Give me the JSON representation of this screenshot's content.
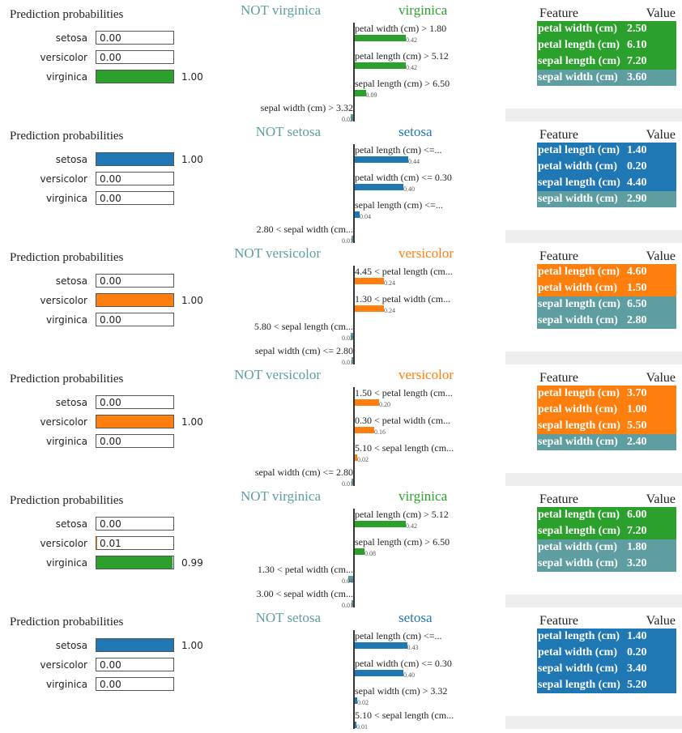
{
  "colors": {
    "setosa": "#1f77b4",
    "versicolor": "#ff7f0e",
    "virginica": "#2ca02c",
    "not": "#5f9ea0",
    "axis": "#333333",
    "gray": "#eeeeee"
  },
  "chart_data": [
    {
      "type": "bar",
      "probabilities_title": "Prediction probabilities",
      "probabilities": [
        {
          "label": "setosa",
          "value": 0.0,
          "text": "0.00"
        },
        {
          "label": "versicolor",
          "value": 0.0,
          "text": "0.00"
        },
        {
          "label": "virginica",
          "value": 1.0,
          "text": "1.00"
        }
      ],
      "predicted_class": "virginica",
      "not_label": "NOT virginica",
      "class_label": "virginica",
      "features": [
        {
          "label": "petal width (cm) > 1.80",
          "value": 0.42,
          "text": "0.42",
          "side": "pos"
        },
        {
          "label": "petal length (cm) > 5.12",
          "value": 0.42,
          "text": "0.42",
          "side": "pos"
        },
        {
          "label": "sepal length (cm) > 6.50",
          "value": 0.09,
          "text": "0.09",
          "side": "pos"
        },
        {
          "label": "sepal width (cm) > 3.32",
          "value": 0.02,
          "text": "0.02",
          "side": "neg"
        }
      ],
      "table_header": {
        "feature": "Feature",
        "value": "Value"
      },
      "table": [
        {
          "feature": "petal width (cm)",
          "value": "2.50",
          "side": "pos"
        },
        {
          "feature": "petal length (cm)",
          "value": "6.10",
          "side": "pos"
        },
        {
          "feature": "sepal length (cm)",
          "value": "7.20",
          "side": "pos"
        },
        {
          "feature": "sepal width (cm)",
          "value": "3.60",
          "side": "neg"
        }
      ]
    },
    {
      "type": "bar",
      "probabilities_title": "Prediction probabilities",
      "probabilities": [
        {
          "label": "setosa",
          "value": 1.0,
          "text": "1.00"
        },
        {
          "label": "versicolor",
          "value": 0.0,
          "text": "0.00"
        },
        {
          "label": "virginica",
          "value": 0.0,
          "text": "0.00"
        }
      ],
      "predicted_class": "setosa",
      "not_label": "NOT setosa",
      "class_label": "setosa",
      "features": [
        {
          "label": "petal length (cm) <=...",
          "value": 0.44,
          "text": "0.44",
          "side": "pos"
        },
        {
          "label": "petal width (cm) <= 0.30",
          "value": 0.4,
          "text": "0.40",
          "side": "pos"
        },
        {
          "label": "sepal length (cm) <=...",
          "value": 0.04,
          "text": "0.04",
          "side": "pos"
        },
        {
          "label": "2.80 < sepal width (cm...",
          "value": 0.01,
          "text": "0.01",
          "side": "neg"
        }
      ],
      "table_header": {
        "feature": "Feature",
        "value": "Value"
      },
      "table": [
        {
          "feature": "petal length (cm)",
          "value": "1.40",
          "side": "pos"
        },
        {
          "feature": "petal width (cm)",
          "value": "0.20",
          "side": "pos"
        },
        {
          "feature": "sepal length (cm)",
          "value": "4.40",
          "side": "pos"
        },
        {
          "feature": "sepal width (cm)",
          "value": "2.90",
          "side": "neg"
        }
      ]
    },
    {
      "type": "bar",
      "probabilities_title": "Prediction probabilities",
      "probabilities": [
        {
          "label": "setosa",
          "value": 0.0,
          "text": "0.00"
        },
        {
          "label": "versicolor",
          "value": 1.0,
          "text": "1.00"
        },
        {
          "label": "virginica",
          "value": 0.0,
          "text": "0.00"
        }
      ],
      "predicted_class": "versicolor",
      "not_label": "NOT versicolor",
      "class_label": "versicolor",
      "features": [
        {
          "label": "4.45 < petal length (cm...",
          "value": 0.24,
          "text": "0.24",
          "side": "pos"
        },
        {
          "label": "1.30 < petal width (cm...",
          "value": 0.24,
          "text": "0.24",
          "side": "pos"
        },
        {
          "label": "5.80 < sepal length (cm...",
          "value": 0.02,
          "text": "0.02",
          "side": "neg"
        },
        {
          "label": "sepal width (cm) <= 2.80",
          "value": 0.01,
          "text": "0.01",
          "side": "neg"
        }
      ],
      "table_header": {
        "feature": "Feature",
        "value": "Value"
      },
      "table": [
        {
          "feature": "petal length (cm)",
          "value": "4.60",
          "side": "pos"
        },
        {
          "feature": "petal width (cm)",
          "value": "1.50",
          "side": "pos"
        },
        {
          "feature": "sepal length (cm)",
          "value": "6.50",
          "side": "neg"
        },
        {
          "feature": "sepal width (cm)",
          "value": "2.80",
          "side": "neg"
        }
      ]
    },
    {
      "type": "bar",
      "probabilities_title": "Prediction probabilities",
      "probabilities": [
        {
          "label": "setosa",
          "value": 0.0,
          "text": "0.00"
        },
        {
          "label": "versicolor",
          "value": 1.0,
          "text": "1.00"
        },
        {
          "label": "virginica",
          "value": 0.0,
          "text": "0.00"
        }
      ],
      "predicted_class": "versicolor",
      "not_label": "NOT versicolor",
      "class_label": "versicolor",
      "features": [
        {
          "label": "1.50 < petal length (cm...",
          "value": 0.2,
          "text": "0.20",
          "side": "pos"
        },
        {
          "label": "0.30 < petal width (cm...",
          "value": 0.16,
          "text": "0.16",
          "side": "pos"
        },
        {
          "label": "5.10 < sepal length (cm...",
          "value": 0.02,
          "text": "0.02",
          "side": "pos"
        },
        {
          "label": "sepal width (cm) <= 2.80",
          "value": 0.01,
          "text": "0.01",
          "side": "neg"
        }
      ],
      "table_header": {
        "feature": "Feature",
        "value": "Value"
      },
      "table": [
        {
          "feature": "petal length (cm)",
          "value": "3.70",
          "side": "pos"
        },
        {
          "feature": "petal width (cm)",
          "value": "1.00",
          "side": "pos"
        },
        {
          "feature": "sepal length (cm)",
          "value": "5.50",
          "side": "pos"
        },
        {
          "feature": "sepal width (cm)",
          "value": "2.40",
          "side": "neg"
        }
      ]
    },
    {
      "type": "bar",
      "probabilities_title": "Prediction probabilities",
      "probabilities": [
        {
          "label": "setosa",
          "value": 0.0,
          "text": "0.00"
        },
        {
          "label": "versicolor",
          "value": 0.01,
          "text": "0.01"
        },
        {
          "label": "virginica",
          "value": 0.99,
          "text": "0.99"
        }
      ],
      "predicted_class": "virginica",
      "not_label": "NOT virginica",
      "class_label": "virginica",
      "features": [
        {
          "label": "petal length (cm) > 5.12",
          "value": 0.42,
          "text": "0.42",
          "side": "pos"
        },
        {
          "label": "sepal length (cm) > 6.50",
          "value": 0.08,
          "text": "0.08",
          "side": "pos"
        },
        {
          "label": "1.30 < petal width (cm...",
          "value": 0.04,
          "text": "0.04",
          "side": "neg"
        },
        {
          "label": "3.00 < sepal width (cm...",
          "value": 0.01,
          "text": "0.01",
          "side": "neg"
        }
      ],
      "table_header": {
        "feature": "Feature",
        "value": "Value"
      },
      "table": [
        {
          "feature": "petal length (cm)",
          "value": "6.00",
          "side": "pos"
        },
        {
          "feature": "sepal length (cm)",
          "value": "7.20",
          "side": "pos"
        },
        {
          "feature": "petal width (cm)",
          "value": "1.80",
          "side": "neg"
        },
        {
          "feature": "sepal width (cm)",
          "value": "3.20",
          "side": "neg"
        }
      ]
    },
    {
      "type": "bar",
      "probabilities_title": "Prediction probabilities",
      "probabilities": [
        {
          "label": "setosa",
          "value": 1.0,
          "text": "1.00"
        },
        {
          "label": "versicolor",
          "value": 0.0,
          "text": "0.00"
        },
        {
          "label": "virginica",
          "value": 0.0,
          "text": "0.00"
        }
      ],
      "predicted_class": "setosa",
      "not_label": "NOT setosa",
      "class_label": "setosa",
      "features": [
        {
          "label": "petal length (cm) <=...",
          "value": 0.43,
          "text": "0.43",
          "side": "pos"
        },
        {
          "label": "petal width (cm) <= 0.30",
          "value": 0.4,
          "text": "0.40",
          "side": "pos"
        },
        {
          "label": "sepal width (cm) > 3.32",
          "value": 0.02,
          "text": "0.02",
          "side": "pos"
        },
        {
          "label": "5.10 < sepal length (cm...",
          "value": 0.01,
          "text": "0.01",
          "side": "pos"
        }
      ],
      "table_header": {
        "feature": "Feature",
        "value": "Value"
      },
      "table": [
        {
          "feature": "petal length (cm)",
          "value": "1.40",
          "side": "pos"
        },
        {
          "feature": "petal width (cm)",
          "value": "0.20",
          "side": "pos"
        },
        {
          "feature": "sepal width (cm)",
          "value": "3.40",
          "side": "pos"
        },
        {
          "feature": "sepal length (cm)",
          "value": "5.20",
          "side": "pos"
        }
      ]
    }
  ]
}
